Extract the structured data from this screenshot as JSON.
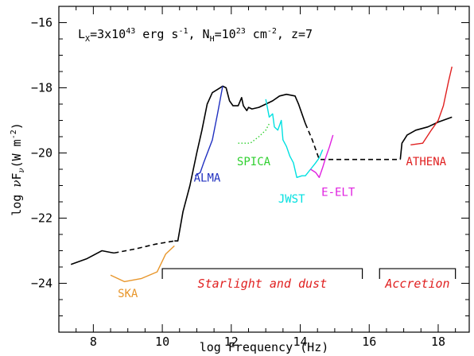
{
  "chart_data": {
    "type": "line",
    "title": "L_X=3x10^43 erg s^-1, N_H=10^23 cm^-2, z=7",
    "title_parts": {
      "lx": "L",
      "lx_sub": "X",
      "lx_val": "=3x10",
      "lx_exp": "43",
      "lx_unit": " erg s",
      "lx_unit_exp": "-1",
      "nh_sep": ", N",
      "nh_sub": "H",
      "nh_val": "=10",
      "nh_exp": "23",
      "nh_unit": " cm",
      "nh_unit_exp": "-2",
      "z": ", z=7"
    },
    "xlabel": "log Frequency (Hz)",
    "ylabel": "log νFν(W m⁻²)",
    "ylabel_parts": {
      "pre": "log ",
      "nu": "ν",
      "F": "F",
      "F_sub": "ν",
      "unit": "(W m",
      "unit_exp": "-2",
      "close": ")"
    },
    "xlim": [
      7,
      18.9
    ],
    "ylim": [
      -25.5,
      -15.5
    ],
    "x_ticks": [
      8,
      10,
      12,
      14,
      16,
      18
    ],
    "x_tick_labels": [
      "8",
      "10",
      "12",
      "14",
      "16",
      "18"
    ],
    "y_ticks": [
      -24,
      -22,
      -20,
      -18,
      -16
    ],
    "y_tick_labels": [
      "−24",
      "−22",
      "−20",
      "−18",
      "−16"
    ],
    "series": [
      {
        "name": "",
        "color": "#000000",
        "style": "solid",
        "points": [
          [
            7.35,
            -23.42
          ],
          [
            7.8,
            -23.25
          ],
          [
            8.25,
            -23.0
          ],
          [
            8.5,
            -23.05
          ],
          [
            8.6,
            -23.07
          ]
        ]
      },
      {
        "name": "",
        "color": "#000000",
        "style": "dashed",
        "points": [
          [
            8.6,
            -23.07
          ],
          [
            9.2,
            -22.95
          ],
          [
            9.8,
            -22.8
          ],
          [
            10.35,
            -22.7
          ]
        ]
      },
      {
        "name": "",
        "color": "#000000",
        "style": "solid",
        "points": [
          [
            10.35,
            -22.7
          ],
          [
            10.45,
            -22.7
          ],
          [
            10.6,
            -21.8
          ],
          [
            10.8,
            -21.0
          ],
          [
            11.0,
            -20.0
          ],
          [
            11.15,
            -19.3
          ],
          [
            11.3,
            -18.5
          ],
          [
            11.45,
            -18.15
          ],
          [
            11.6,
            -18.05
          ],
          [
            11.75,
            -17.95
          ],
          [
            11.85,
            -18.0
          ],
          [
            11.95,
            -18.4
          ],
          [
            12.05,
            -18.55
          ],
          [
            12.2,
            -18.55
          ],
          [
            12.3,
            -18.3
          ],
          [
            12.35,
            -18.55
          ],
          [
            12.45,
            -18.7
          ],
          [
            12.5,
            -18.6
          ],
          [
            12.6,
            -18.65
          ],
          [
            12.8,
            -18.6
          ],
          [
            13.0,
            -18.5
          ],
          [
            13.2,
            -18.4
          ],
          [
            13.4,
            -18.25
          ],
          [
            13.6,
            -18.2
          ],
          [
            13.85,
            -18.25
          ],
          [
            13.95,
            -18.5
          ],
          [
            14.05,
            -18.8
          ],
          [
            14.15,
            -19.1
          ]
        ]
      },
      {
        "name": "",
        "color": "#000000",
        "style": "dashed",
        "points": [
          [
            14.15,
            -19.1
          ],
          [
            14.35,
            -19.6
          ],
          [
            14.55,
            -20.2
          ],
          [
            15.5,
            -20.2
          ],
          [
            16.3,
            -20.2
          ],
          [
            16.9,
            -20.2
          ]
        ]
      },
      {
        "name": "",
        "color": "#000000",
        "style": "solid",
        "points": [
          [
            16.9,
            -20.2
          ],
          [
            16.95,
            -19.7
          ],
          [
            17.1,
            -19.45
          ],
          [
            17.35,
            -19.3
          ],
          [
            17.7,
            -19.2
          ],
          [
            18.0,
            -19.05
          ],
          [
            18.4,
            -18.9
          ]
        ]
      }
    ],
    "instruments": [
      {
        "name": "SKA",
        "color": "#e8962b",
        "style": "solid",
        "points": [
          [
            8.5,
            -23.75
          ],
          [
            8.9,
            -23.95
          ],
          [
            9.4,
            -23.85
          ],
          [
            9.85,
            -23.65
          ],
          [
            10.1,
            -23.1
          ],
          [
            10.35,
            -22.85
          ]
        ],
        "label_at": [
          9.0,
          -24.3
        ]
      },
      {
        "name": "ALMA",
        "color": "#2030c0",
        "style": "solid",
        "points": [
          [
            10.95,
            -20.7
          ],
          [
            11.1,
            -20.6
          ],
          [
            11.2,
            -20.3
          ],
          [
            11.45,
            -19.6
          ],
          [
            11.6,
            -18.8
          ],
          [
            11.75,
            -17.95
          ]
        ],
        "label_at": [
          11.3,
          -20.75
        ]
      },
      {
        "name": "SPICA",
        "color": "#30d030",
        "style": "dotted",
        "points": [
          [
            12.2,
            -19.7
          ],
          [
            12.55,
            -19.7
          ],
          [
            12.8,
            -19.5
          ],
          [
            13.0,
            -19.3
          ],
          [
            13.1,
            -19.1
          ]
        ],
        "label_at": [
          12.65,
          -20.25
        ]
      },
      {
        "name": "JWST",
        "color": "#00e0e0",
        "style": "solid",
        "points": [
          [
            13.0,
            -18.35
          ],
          [
            13.1,
            -18.9
          ],
          [
            13.2,
            -18.8
          ],
          [
            13.25,
            -19.2
          ],
          [
            13.35,
            -19.3
          ],
          [
            13.45,
            -19.0
          ],
          [
            13.5,
            -19.6
          ],
          [
            13.6,
            -19.8
          ],
          [
            13.7,
            -20.1
          ],
          [
            13.8,
            -20.3
          ],
          [
            13.9,
            -20.75
          ],
          [
            14.05,
            -20.7
          ],
          [
            14.15,
            -20.7
          ],
          [
            14.3,
            -20.5
          ],
          [
            14.45,
            -20.3
          ],
          [
            14.55,
            -20.15
          ],
          [
            14.65,
            -19.9
          ]
        ],
        "label_at": [
          13.75,
          -21.4
        ]
      },
      {
        "name": "E-ELT",
        "color": "#e020e0",
        "style": "solid",
        "points": [
          [
            14.3,
            -20.5
          ],
          [
            14.45,
            -20.6
          ],
          [
            14.55,
            -20.75
          ],
          [
            14.65,
            -20.45
          ],
          [
            14.75,
            -20.1
          ],
          [
            14.85,
            -19.8
          ],
          [
            14.95,
            -19.45
          ]
        ],
        "label_at": [
          15.1,
          -21.2
        ]
      },
      {
        "name": "ATHENA",
        "color": "#e02020",
        "style": "solid",
        "points": [
          [
            17.2,
            -19.75
          ],
          [
            17.55,
            -19.7
          ],
          [
            17.8,
            -19.3
          ],
          [
            18.0,
            -19.0
          ],
          [
            18.15,
            -18.55
          ],
          [
            18.3,
            -17.8
          ],
          [
            18.4,
            -17.35
          ]
        ],
        "label_at": [
          17.65,
          -20.25
        ]
      }
    ],
    "regions": [
      {
        "label": "Starlight and dust",
        "from": 10.0,
        "to": 15.8,
        "y": -23.55,
        "color": "#e02020"
      },
      {
        "label": "Accretion",
        "from": 16.3,
        "to": 18.5,
        "y": -23.55,
        "color": "#e02020"
      }
    ]
  }
}
